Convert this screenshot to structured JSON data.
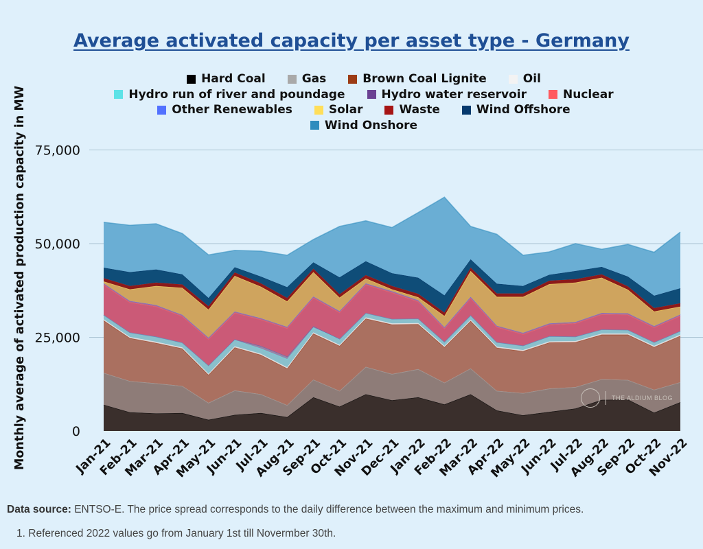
{
  "title": "Average activated capacity per asset type - Germany",
  "footer": {
    "source_label": "Data source:",
    "source_text": " ENTSO-E. The price spread corresponds to the daily difference between the maximum and minimum prices.",
    "note_number": "1.",
    "note_text": "Referenced 2022 values go from January 1st till Novermber 30th."
  },
  "watermark": {
    "text": "THE ALDIUM BLOG"
  },
  "chart_data": {
    "type": "area",
    "stacked": true,
    "title": "Average activated capacity per asset type - Germany",
    "xlabel": "",
    "ylabel": "Monthly average of activated production capacity in MW",
    "ylim": [
      0,
      85000
    ],
    "yticks": [
      0,
      25000,
      50000,
      75000
    ],
    "ytick_labels": [
      "0",
      "25,000",
      "50,000",
      "75,000"
    ],
    "grid": true,
    "legend_position": "top",
    "categories": [
      "Jan-21",
      "Feb-21",
      "Mar-21",
      "Apr-21",
      "May-21",
      "Jun-21",
      "Jul-21",
      "Aug-21",
      "Sep-21",
      "Oct-21",
      "Nov-21",
      "Dec-21",
      "Jan-22",
      "Feb-22",
      "Mar-22",
      "Apr-22",
      "May-22",
      "Jun-22",
      "Jul-22",
      "Aug-22",
      "Sep-22",
      "Oct-22",
      "Nov-22"
    ],
    "series": [
      {
        "name": "Hard Coal",
        "color": "#000000",
        "fill": "#3a2f2c",
        "values": [
          7000,
          5000,
          4700,
          4800,
          3000,
          4300,
          4800,
          3700,
          9000,
          6500,
          9800,
          8200,
          9000,
          7100,
          9800,
          5500,
          4200,
          5100,
          6000,
          8300,
          8400,
          4900,
          7700
        ]
      },
      {
        "name": "Gas",
        "color": "#a9a9a9",
        "fill": "#8e7c78",
        "values": [
          8500,
          8300,
          8000,
          7200,
          4500,
          6500,
          5000,
          3200,
          4700,
          4200,
          7300,
          7000,
          7500,
          5800,
          6900,
          5200,
          5900,
          6200,
          5700,
          5500,
          5200,
          6100,
          5300
        ]
      },
      {
        "name": "Brown Coal Lignite",
        "color": "#9c3b15",
        "fill": "#aa7060",
        "values": [
          14000,
          11500,
          10800,
          10000,
          7500,
          11500,
          10500,
          9800,
          12300,
          12000,
          12900,
          13200,
          12000,
          9500,
          12700,
          11500,
          11200,
          12300,
          12000,
          11900,
          12100,
          11400,
          12400
        ]
      },
      {
        "name": "Oil",
        "color": "#f3f3f3",
        "fill": "#d6cece",
        "values": [
          300,
          300,
          300,
          300,
          300,
          300,
          300,
          300,
          300,
          300,
          300,
          300,
          300,
          300,
          300,
          300,
          300,
          300,
          300,
          300,
          300,
          300,
          300
        ]
      },
      {
        "name": "Hydro run of river and poundage",
        "color": "#5de2e7",
        "fill": "#8ac0cc",
        "values": [
          1200,
          1200,
          1400,
          1300,
          2200,
          1700,
          1400,
          2200,
          1300,
          1600,
          1200,
          1200,
          1200,
          1100,
          1200,
          1200,
          1200,
          1400,
          1200,
          1100,
          1000,
          1000,
          1000
        ]
      },
      {
        "name": "Hydro water reservoir",
        "color": "#6a4192",
        "fill": "#9686a8",
        "values": [
          0,
          0,
          0,
          0,
          0,
          200,
          700,
          700,
          400,
          0,
          0,
          0,
          0,
          0,
          0,
          0,
          0,
          0,
          0,
          0,
          0,
          0,
          0
        ]
      },
      {
        "name": "Nuclear",
        "color": "#ff5a5f",
        "fill": "#cb5a77",
        "values": [
          8000,
          8000,
          8000,
          7000,
          7000,
          7000,
          7000,
          7500,
          7500,
          7000,
          7500,
          7000,
          4500,
          3500,
          4500,
          4000,
          3000,
          3000,
          3500,
          4000,
          4000,
          3900,
          4000
        ]
      },
      {
        "name": "Other Renewables",
        "color": "#5271ff",
        "fill": "#b56a88",
        "values": [
          400,
          400,
          400,
          400,
          400,
          400,
          400,
          400,
          400,
          400,
          400,
          400,
          400,
          400,
          400,
          400,
          400,
          400,
          400,
          400,
          400,
          400,
          400
        ]
      },
      {
        "name": "Solar",
        "color": "#ffde59",
        "fill": "#cfa45e",
        "values": [
          500,
          3100,
          5100,
          7200,
          7500,
          9500,
          8400,
          6800,
          6500,
          3600,
          1300,
          500,
          800,
          3000,
          6900,
          7700,
          9600,
          10500,
          10500,
          9400,
          6300,
          3900,
          2100
        ]
      },
      {
        "name": "Waste",
        "color": "#a61515",
        "fill": "#8b1a1a",
        "values": [
          900,
          900,
          900,
          900,
          900,
          900,
          900,
          900,
          900,
          900,
          900,
          900,
          900,
          900,
          900,
          900,
          900,
          900,
          900,
          900,
          900,
          900,
          900
        ]
      },
      {
        "name": "Wind Offshore",
        "color": "#063a6e",
        "fill": "#0f4d78",
        "values": [
          2800,
          3700,
          3500,
          2700,
          2200,
          1400,
          1800,
          2900,
          1700,
          4500,
          3700,
          3400,
          4300,
          4600,
          2200,
          2600,
          2000,
          1600,
          2200,
          2000,
          2600,
          3300,
          4000
        ]
      },
      {
        "name": "Wind Onshore",
        "color": "#2e8cbd",
        "fill": "#6aaed4",
        "values": [
          12100,
          12500,
          12200,
          10900,
          11500,
          4500,
          6800,
          8500,
          6100,
          13600,
          10800,
          12200,
          17400,
          26200,
          8800,
          13200,
          8200,
          6100,
          7300,
          4700,
          8600,
          11600,
          15000
        ]
      }
    ]
  }
}
